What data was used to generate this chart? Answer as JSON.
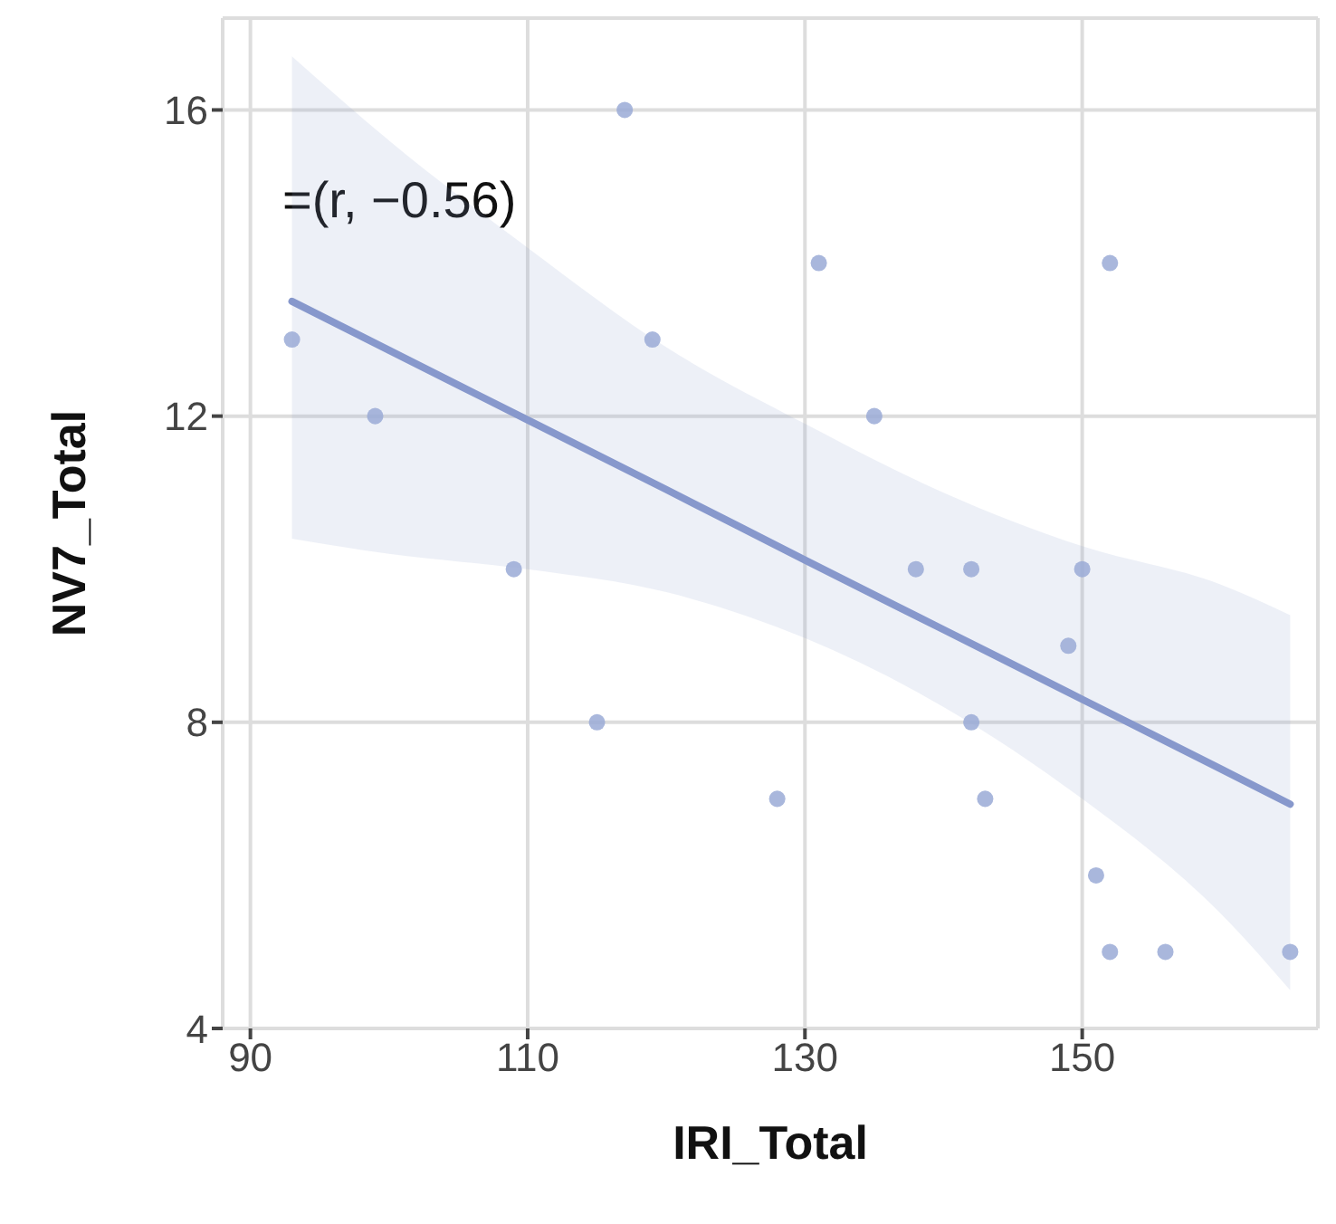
{
  "chart_data": {
    "type": "scatter",
    "xlabel": "IRI_Total",
    "ylabel": "NV7_Total",
    "xlim": [
      88,
      167
    ],
    "xticks": [
      90,
      110,
      130,
      150
    ],
    "ylim": [
      4,
      17.2
    ],
    "yticks": [
      4,
      8,
      12,
      16
    ],
    "grid": true,
    "legend": false,
    "annotations": [
      "=(r, −0.56)"
    ],
    "series": [
      {
        "marker": "circle",
        "color": "#9aaad6",
        "x": [
          93,
          99,
          109,
          115,
          117,
          119,
          128,
          131,
          135,
          138,
          142,
          142,
          143,
          149,
          150,
          151,
          152,
          152,
          156,
          165
        ],
        "values": [
          13,
          12,
          10,
          8,
          16,
          13,
          7,
          14,
          12,
          10,
          10,
          8,
          7,
          9,
          10,
          6,
          14,
          5,
          5,
          5
        ]
      },
      {
        "type": "line",
        "color": "#8798cc",
        "line_style": "solid",
        "x": [
          93,
          100,
          110,
          120,
          130,
          140,
          150,
          160,
          165
        ],
        "values": [
          13.5,
          12.86,
          11.95,
          11.04,
          10.12,
          9.21,
          8.3,
          7.39,
          6.93
        ],
        "lower": [
          10.4,
          10.2,
          10.0,
          9.7,
          9.1,
          8.2,
          7.0,
          5.5,
          4.5
        ],
        "upper": [
          16.7,
          15.6,
          14.2,
          12.9,
          11.9,
          11.0,
          10.3,
          9.8,
          9.4
        ]
      }
    ]
  }
}
